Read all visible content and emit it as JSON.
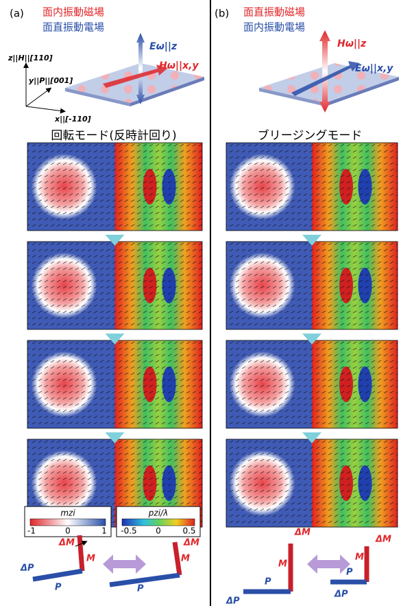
{
  "panels": [
    {
      "label": "(a)",
      "field_legend": [
        "面内振動磁場",
        "面直振動電場"
      ],
      "field_e": "Eω||z",
      "field_h": "Hω||x,y",
      "axes": [
        "z||H||[110]",
        "y||P||[001]",
        "x||[-110]"
      ],
      "mode_title": "回転モード(反時計回り)",
      "colorbars": [
        {
          "title": "mzi",
          "ticks": [
            "-1",
            "0",
            "1"
          ]
        },
        {
          "title": "pzi/λ",
          "ticks": [
            "-0.5",
            "0",
            "0.5"
          ]
        }
      ],
      "vector_labels": [
        "ΔM",
        "M",
        "ΔP",
        "P",
        "ΔM",
        "M",
        "P"
      ]
    },
    {
      "label": "(b)",
      "field_legend": [
        "面直振動磁場",
        "面内振動電場"
      ],
      "field_h": "Hω||z",
      "field_e": "Eω||x,y",
      "mode_title": "ブリージングモード",
      "vector_labels": [
        "ΔM",
        "M",
        "P",
        "ΔP",
        "ΔM",
        "M",
        "P",
        "ΔP"
      ]
    }
  ]
}
